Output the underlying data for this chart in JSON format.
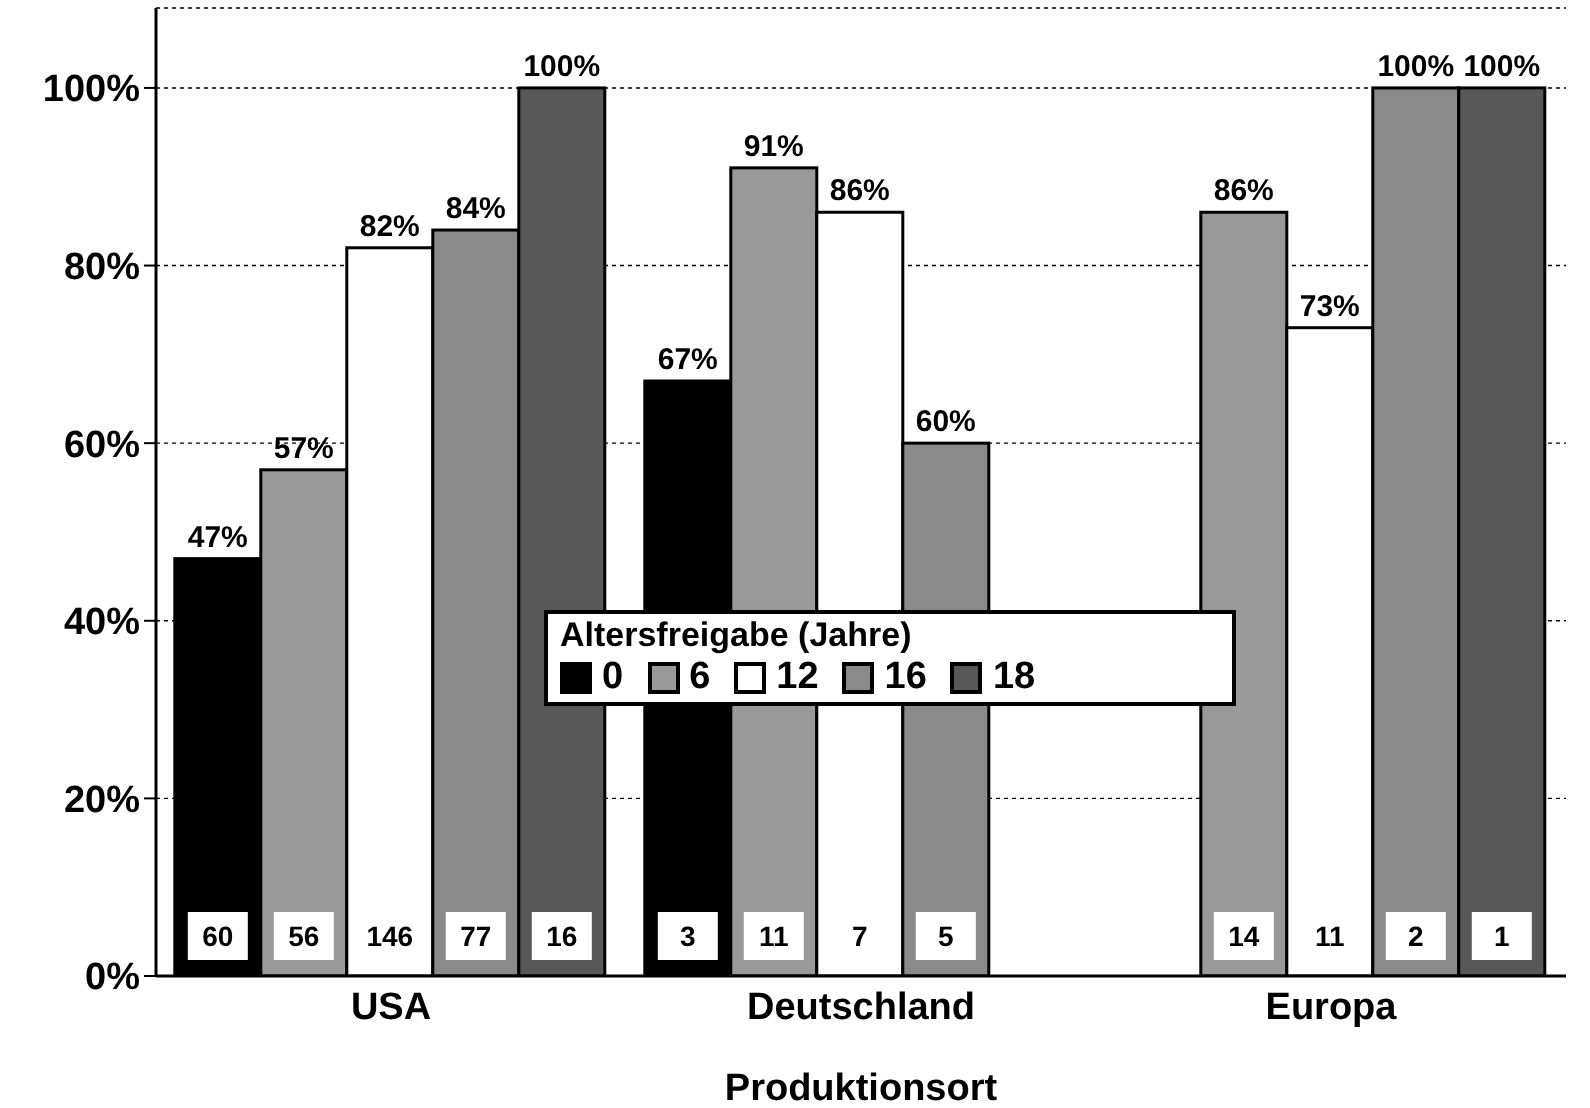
{
  "chart_data": {
    "type": "bar",
    "xlabel": "Produktionsort",
    "legend_title": "Altersfreigabe (Jahre)",
    "legend": "center",
    "grid": "y",
    "categories": [
      "USA",
      "Deutschland",
      "Europa"
    ],
    "series": [
      {
        "name": "0",
        "color": "#000000",
        "values": [
          47,
          67,
          null
        ],
        "value_labels": [
          "47%",
          "67%",
          null
        ]
      },
      {
        "name": "6",
        "color": "#999999",
        "values": [
          57,
          91,
          86
        ],
        "value_labels": [
          "57%",
          "91%",
          "86%"
        ]
      },
      {
        "name": "12",
        "color": "#ffffff",
        "values": [
          82,
          86,
          73
        ],
        "value_labels": [
          "82%",
          "86%",
          "73%"
        ]
      },
      {
        "name": "16",
        "color": "#8a8a8a",
        "values": [
          84,
          60,
          100
        ],
        "value_labels": [
          "84%",
          "60%",
          "100%"
        ]
      },
      {
        "name": "18",
        "color": "#585858",
        "values": [
          100,
          null,
          100
        ],
        "value_labels": [
          "100%",
          null,
          "100%"
        ]
      }
    ],
    "ylim": [
      0,
      109
    ],
    "yticks": [
      {
        "value": 0,
        "label": "0%"
      },
      {
        "value": 20,
        "label": "20%"
      },
      {
        "value": 40,
        "label": "40%"
      },
      {
        "value": 60,
        "label": "60%"
      },
      {
        "value": 80,
        "label": "80%"
      },
      {
        "value": 100,
        "label": "100%"
      }
    ],
    "annotations": [
      "60",
      "56",
      "146",
      "77",
      "16",
      "3",
      "11",
      "7",
      "5",
      "14",
      "11",
      "2",
      "1"
    ]
  }
}
